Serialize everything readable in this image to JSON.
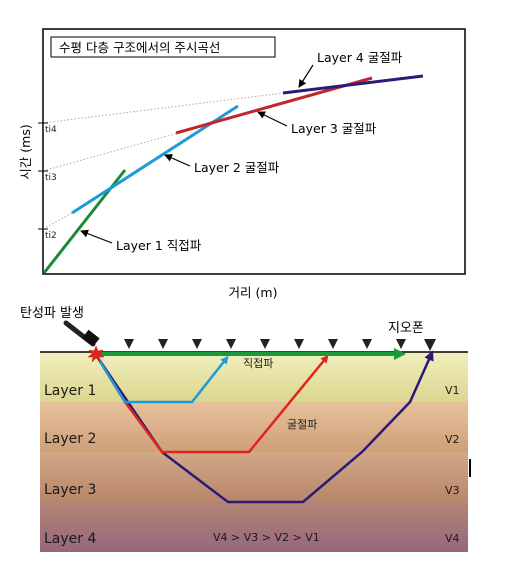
{
  "top_chart": {
    "title": "수평 다층 구조에서의 주시곡선",
    "x_axis_label": "거리 (m)",
    "y_axis_label": "시간 (ms)",
    "intercept_labels": [
      "ti4",
      "ti3",
      "ti2"
    ],
    "annotations": {
      "layer4": "Layer 4 굴절파",
      "layer3": "Layer 3 굴절파",
      "layer2": "Layer 2 굴절파",
      "layer1": "Layer 1 직접파"
    },
    "line_colors": {
      "layer1": "#1a8a3a",
      "layer2": "#1e9ad6",
      "layer3": "#c0262b",
      "layer4": "#2b1a78"
    }
  },
  "bottom_diagram": {
    "source_label": "탄성파 발생",
    "geophone_label": "지오폰",
    "direct_wave_label": "직접파",
    "refracted_wave_label": "굴절파",
    "layers": [
      {
        "name": "Layer 1",
        "velocity": "V1",
        "color": "#e6e3a2"
      },
      {
        "name": "Layer 2",
        "velocity": "V2",
        "color": "#dcb48f"
      },
      {
        "name": "Layer 3",
        "velocity": "V3",
        "color": "#c39676"
      },
      {
        "name": "Layer 4",
        "velocity": "V4",
        "color": "#a3747a"
      }
    ],
    "velocity_relation": "V4 > V3 > V2 > V1",
    "ray_colors": {
      "direct": "#1a9a3a",
      "layer1": "#1e9ad6",
      "layer2": "#e0261b",
      "layer3": "#2b1a78"
    }
  }
}
